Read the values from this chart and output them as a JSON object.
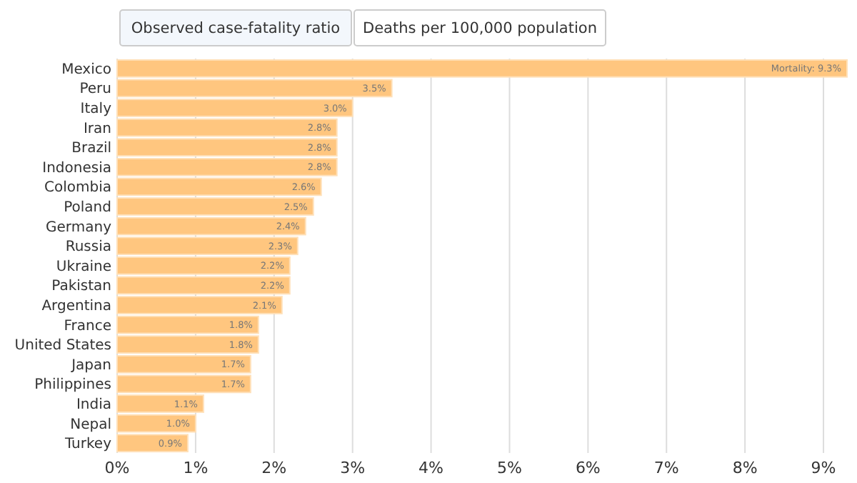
{
  "chart_data": {
    "type": "bar",
    "orientation": "horizontal",
    "categories": [
      "Mexico",
      "Peru",
      "Italy",
      "Iran",
      "Brazil",
      "Indonesia",
      "Colombia",
      "Poland",
      "Germany",
      "Russia",
      "Ukraine",
      "Pakistan",
      "Argentina",
      "France",
      "United States",
      "Japan",
      "Philippines",
      "India",
      "Nepal",
      "Turkey"
    ],
    "values": [
      9.3,
      3.5,
      3.0,
      2.8,
      2.8,
      2.8,
      2.6,
      2.5,
      2.4,
      2.3,
      2.2,
      2.2,
      2.1,
      1.8,
      1.8,
      1.7,
      1.7,
      1.1,
      1.0,
      0.9
    ],
    "value_labels": [
      "Mortality: 9.3%",
      "3.5%",
      "3.0%",
      "2.8%",
      "2.8%",
      "2.8%",
      "2.6%",
      "2.5%",
      "2.4%",
      "2.3%",
      "2.2%",
      "2.2%",
      "2.1%",
      "1.8%",
      "1.8%",
      "1.7%",
      "1.7%",
      "1.1%",
      "1.0%",
      "0.9%"
    ],
    "color": "#ffc67f",
    "xlim": [
      0,
      9.3
    ],
    "xticks": [
      {
        "value": 0,
        "label": "0%"
      },
      {
        "value": 1,
        "label": "1%"
      },
      {
        "value": 2,
        "label": "2%"
      },
      {
        "value": 3,
        "label": "3%"
      },
      {
        "value": 4,
        "label": "4%"
      },
      {
        "value": 5,
        "label": "5%"
      },
      {
        "value": 6,
        "label": "6%"
      },
      {
        "value": 7,
        "label": "7%"
      },
      {
        "value": 8,
        "label": "8%"
      },
      {
        "value": 9,
        "label": "9%"
      }
    ],
    "grid": "x",
    "annotations": [
      "Observed case-fatality ratio",
      "Deaths per 100,000 population"
    ]
  }
}
